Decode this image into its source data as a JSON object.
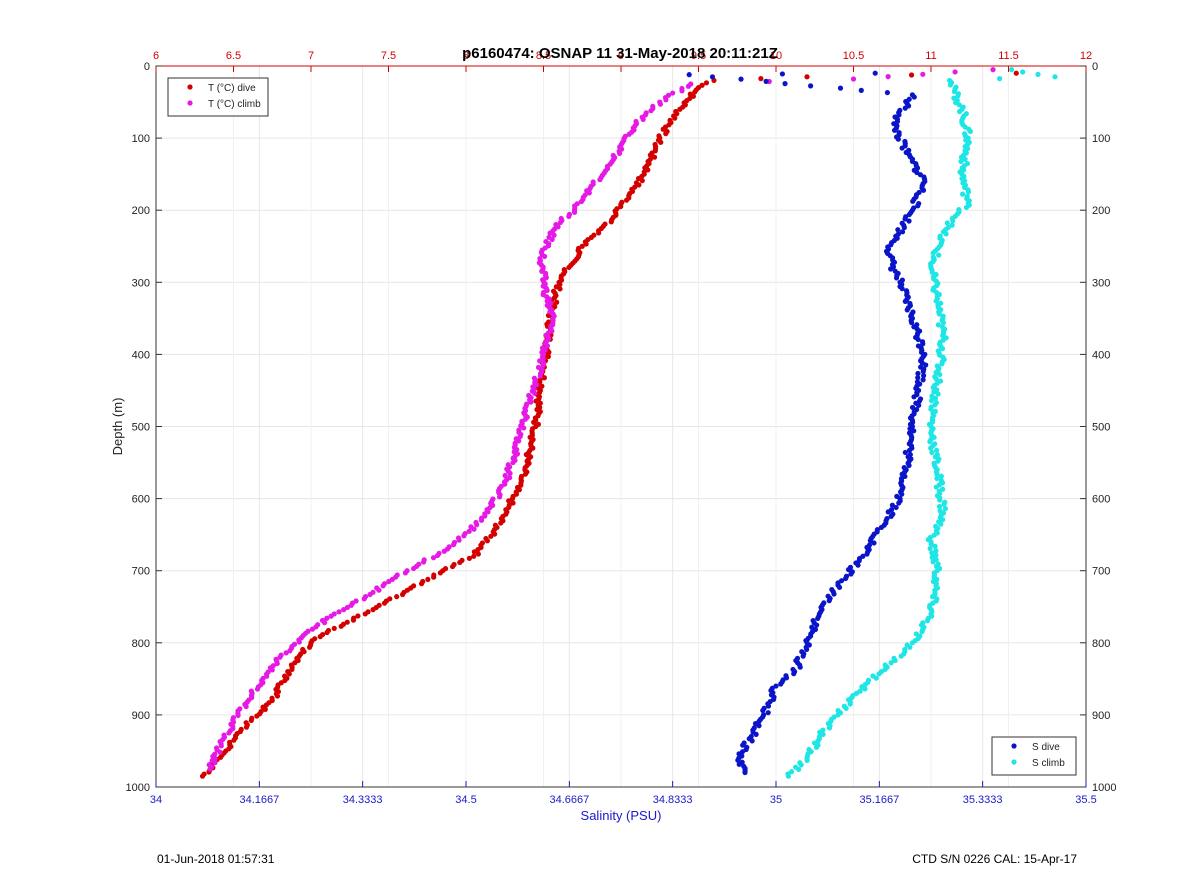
{
  "chart_data": {
    "type": "scatter",
    "title": "p6160474: OSNAP 11 31-May-2018 20:11:21Z",
    "ylabel": "Depth (m)",
    "xlabel_bottom": "Salinity (PSU)",
    "xlabel_top": "",
    "y_reversed": true,
    "ylim": [
      0,
      1000
    ],
    "x_bottom_lim": [
      34,
      35.5
    ],
    "x_top_lim": [
      6,
      12
    ],
    "y_ticks": [
      "0",
      "100",
      "200",
      "300",
      "400",
      "500",
      "600",
      "700",
      "800",
      "900",
      "1000"
    ],
    "x_bottom_ticks": [
      "34",
      "34.1667",
      "34.3333",
      "34.5",
      "34.6667",
      "34.8333",
      "35",
      "35.1667",
      "35.3333",
      "35.5"
    ],
    "x_top_ticks": [
      "6",
      "6.5",
      "7",
      "7.5",
      "8",
      "8.5",
      "9",
      "9.5",
      "10",
      "10.5",
      "11",
      "11.5",
      "12"
    ],
    "grid": true,
    "legends": [
      {
        "placement": "top-left",
        "entries": [
          {
            "label": "T (°C) dive",
            "color": "#d40000"
          },
          {
            "label": "T (°C) climb",
            "color": "#e619e6"
          }
        ]
      },
      {
        "placement": "bottom-right",
        "entries": [
          {
            "label": "S dive",
            "color": "#0a14c8"
          },
          {
            "label": "S climb",
            "color": "#1ee6e6"
          }
        ]
      }
    ],
    "series": [
      {
        "name": "T (°C) dive",
        "axis": "top",
        "color": "#d40000",
        "points": [
          [
            11.55,
            10
          ],
          [
            10.2,
            15
          ],
          [
            9.6,
            20
          ],
          [
            9.5,
            30
          ],
          [
            9.38,
            60
          ],
          [
            9.25,
            100
          ],
          [
            9.15,
            150
          ],
          [
            9.05,
            180
          ],
          [
            8.95,
            210
          ],
          [
            8.75,
            250
          ],
          [
            8.6,
            300
          ],
          [
            8.55,
            340
          ],
          [
            8.52,
            400
          ],
          [
            8.48,
            450
          ],
          [
            8.45,
            500
          ],
          [
            8.38,
            560
          ],
          [
            8.3,
            600
          ],
          [
            8.2,
            640
          ],
          [
            8.05,
            680
          ],
          [
            7.85,
            700
          ],
          [
            7.6,
            730
          ],
          [
            7.35,
            760
          ],
          [
            7.15,
            780
          ],
          [
            7.0,
            800
          ],
          [
            6.85,
            840
          ],
          [
            6.75,
            880
          ],
          [
            6.55,
            920
          ],
          [
            6.45,
            950
          ],
          [
            6.3,
            985
          ]
        ]
      },
      {
        "name": "T (°C) climb",
        "axis": "top",
        "color": "#e619e6",
        "points": [
          [
            11.4,
            5
          ],
          [
            10.5,
            18
          ],
          [
            9.45,
            25
          ],
          [
            9.25,
            50
          ],
          [
            9.1,
            80
          ],
          [
            8.95,
            130
          ],
          [
            8.8,
            170
          ],
          [
            8.7,
            200
          ],
          [
            8.58,
            220
          ],
          [
            8.48,
            270
          ],
          [
            8.52,
            320
          ],
          [
            8.56,
            350
          ],
          [
            8.5,
            400
          ],
          [
            8.42,
            460
          ],
          [
            8.34,
            520
          ],
          [
            8.25,
            580
          ],
          [
            8.1,
            630
          ],
          [
            7.88,
            670
          ],
          [
            7.62,
            700
          ],
          [
            7.4,
            730
          ],
          [
            7.15,
            760
          ],
          [
            6.95,
            790
          ],
          [
            6.8,
            820
          ],
          [
            6.62,
            870
          ],
          [
            6.5,
            910
          ],
          [
            6.42,
            940
          ],
          [
            6.35,
            975
          ]
        ]
      },
      {
        "name": "S dive",
        "axis": "bottom",
        "color": "#0a14c8",
        "points": [
          [
            34.86,
            12
          ],
          [
            35.16,
            10
          ],
          [
            35.22,
            40
          ],
          [
            35.19,
            80
          ],
          [
            35.21,
            120
          ],
          [
            35.24,
            160
          ],
          [
            35.22,
            200
          ],
          [
            35.18,
            260
          ],
          [
            35.2,
            300
          ],
          [
            35.22,
            350
          ],
          [
            35.24,
            400
          ],
          [
            35.23,
            450
          ],
          [
            35.22,
            500
          ],
          [
            35.21,
            560
          ],
          [
            35.2,
            600
          ],
          [
            35.17,
            640
          ],
          [
            35.14,
            680
          ],
          [
            35.1,
            720
          ],
          [
            35.07,
            760
          ],
          [
            35.05,
            800
          ],
          [
            35.03,
            840
          ],
          [
            35.0,
            860
          ],
          [
            34.98,
            900
          ],
          [
            34.96,
            930
          ],
          [
            34.94,
            960
          ],
          [
            34.95,
            980
          ]
        ]
      },
      {
        "name": "S climb",
        "axis": "bottom",
        "color": "#1ee6e6",
        "points": [
          [
            35.45,
            15
          ],
          [
            35.38,
            5
          ],
          [
            35.28,
            20
          ],
          [
            35.3,
            60
          ],
          [
            35.31,
            100
          ],
          [
            35.3,
            150
          ],
          [
            35.31,
            190
          ],
          [
            35.27,
            230
          ],
          [
            35.25,
            280
          ],
          [
            35.26,
            320
          ],
          [
            35.27,
            380
          ],
          [
            35.26,
            440
          ],
          [
            35.25,
            500
          ],
          [
            35.26,
            560
          ],
          [
            35.27,
            620
          ],
          [
            35.25,
            660
          ],
          [
            35.26,
            700
          ],
          [
            35.25,
            760
          ],
          [
            35.22,
            800
          ],
          [
            35.17,
            840
          ],
          [
            35.13,
            870
          ],
          [
            35.1,
            900
          ],
          [
            35.07,
            930
          ],
          [
            35.05,
            960
          ],
          [
            35.02,
            985
          ]
        ]
      }
    ]
  },
  "footer": {
    "left": "01-Jun-2018 01:57:31",
    "right": "CTD S/N 0226  CAL: 15-Apr-17"
  }
}
